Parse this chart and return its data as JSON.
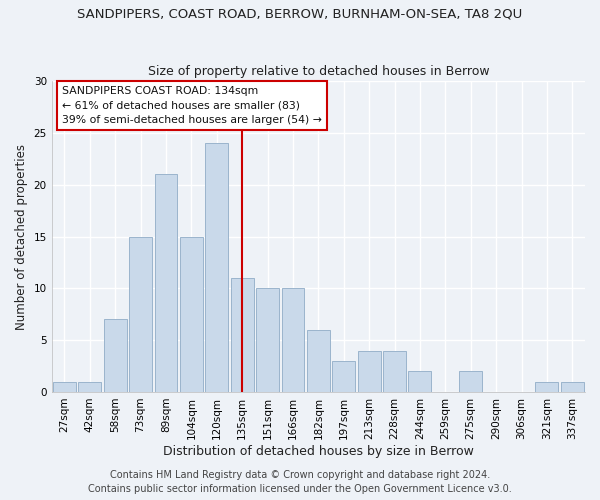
{
  "title": "SANDPIPERS, COAST ROAD, BERROW, BURNHAM-ON-SEA, TA8 2QU",
  "subtitle": "Size of property relative to detached houses in Berrow",
  "xlabel": "Distribution of detached houses by size in Berrow",
  "ylabel": "Number of detached properties",
  "bar_labels": [
    "27sqm",
    "42sqm",
    "58sqm",
    "73sqm",
    "89sqm",
    "104sqm",
    "120sqm",
    "135sqm",
    "151sqm",
    "166sqm",
    "182sqm",
    "197sqm",
    "213sqm",
    "228sqm",
    "244sqm",
    "259sqm",
    "275sqm",
    "290sqm",
    "306sqm",
    "321sqm",
    "337sqm"
  ],
  "bar_values": [
    1,
    1,
    7,
    15,
    21,
    15,
    24,
    11,
    10,
    10,
    6,
    3,
    4,
    4,
    2,
    0,
    2,
    0,
    0,
    1,
    1
  ],
  "bar_color": "#c9d9ea",
  "bar_edge_color": "#9ab4cc",
  "vline_x": 7,
  "vline_color": "#cc0000",
  "ylim": [
    0,
    30
  ],
  "yticks": [
    0,
    5,
    10,
    15,
    20,
    25,
    30
  ],
  "annotation_title": "SANDPIPERS COAST ROAD: 134sqm",
  "annotation_line1": "← 61% of detached houses are smaller (83)",
  "annotation_line2": "39% of semi-detached houses are larger (54) →",
  "annotation_box_color": "#ffffff",
  "annotation_box_edge": "#cc0000",
  "footer1": "Contains HM Land Registry data © Crown copyright and database right 2024.",
  "footer2": "Contains public sector information licensed under the Open Government Licence v3.0.",
  "title_fontsize": 9.5,
  "subtitle_fontsize": 9,
  "xlabel_fontsize": 9,
  "ylabel_fontsize": 8.5,
  "tick_fontsize": 7.5,
  "annotation_fontsize": 7.8,
  "footer_fontsize": 7,
  "background_color": "#eef2f7",
  "grid_color": "#ffffff",
  "text_color": "#222222"
}
